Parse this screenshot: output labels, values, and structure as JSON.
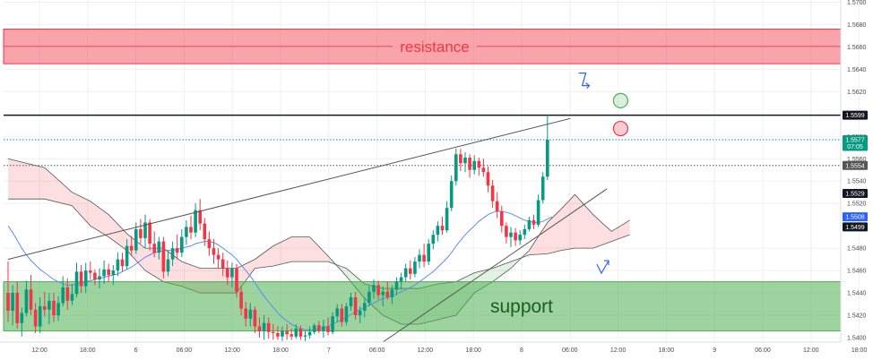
{
  "chart_data": {
    "type": "candlestick",
    "y_ticks": [
      "1.5700",
      "1.5680",
      "1.5660",
      "1.5640",
      "1.5620",
      "1.5580",
      "1.5560",
      "1.5540",
      "1.5520",
      "1.5480",
      "1.5460",
      "1.5440",
      "1.5420",
      "1.5400"
    ],
    "ylim": [
      1.5396,
      1.5702
    ],
    "x_ticks": [
      "12:00",
      "18:00",
      "6",
      "06:00",
      "12:00",
      "18:00",
      "7",
      "06:00",
      "12:00",
      "18:00",
      "8",
      "06:00",
      "12:00",
      "18:00",
      "9",
      "06:00",
      "12:00",
      "18:00"
    ],
    "grid": true,
    "price_tags": [
      {
        "label": "1.5599",
        "value": 1.5599,
        "color": "#131722"
      },
      {
        "label": "1.5577",
        "value": 1.5577,
        "color": "#089981"
      },
      {
        "label": "07:05",
        "value": 1.5571,
        "color": "#089981"
      },
      {
        "label": "1.5554",
        "value": 1.5554,
        "color": "#555555"
      },
      {
        "label": "1.5529",
        "value": 1.5529,
        "color": "#131722"
      },
      {
        "label": "1.5508",
        "value": 1.5508,
        "color": "#2962ff"
      },
      {
        "label": "1.5499",
        "value": 1.5499,
        "color": "#131722"
      }
    ],
    "zones": [
      {
        "label": "resistance",
        "from": 1.5645,
        "to": 1.5676,
        "color": "#f23645"
      },
      {
        "label": "support",
        "from": 1.5406,
        "to": 1.545,
        "color": "#4caf50"
      }
    ],
    "horizontal_lines": [
      {
        "value": 1.5599,
        "style": "solid",
        "color": "#131722"
      },
      {
        "value": 1.5554,
        "style": "dotted",
        "color": "#555555"
      },
      {
        "value": 1.5577,
        "style": "dotted",
        "color": "#089981"
      }
    ],
    "trendlines": [
      {
        "from": [
          0,
          1.547
        ],
        "to": [
          123,
          1.5596
        ]
      },
      {
        "from": [
          82,
          1.5396
        ],
        "to": [
          131,
          1.5533
        ]
      }
    ],
    "candles": [
      [
        1.544,
        1.5468,
        1.5414,
        1.5424
      ],
      [
        1.5424,
        1.5447,
        1.5411,
        1.544
      ],
      [
        1.544,
        1.545,
        1.5408,
        1.5413
      ],
      [
        1.5413,
        1.5427,
        1.5401,
        1.5422
      ],
      [
        1.5422,
        1.5451,
        1.5419,
        1.5443
      ],
      [
        1.5443,
        1.5456,
        1.542,
        1.5425
      ],
      [
        1.5425,
        1.5431,
        1.5404,
        1.541
      ],
      [
        1.541,
        1.5436,
        1.5404,
        1.5428
      ],
      [
        1.5428,
        1.5441,
        1.5419,
        1.5425
      ],
      [
        1.5425,
        1.544,
        1.5412,
        1.5433
      ],
      [
        1.5433,
        1.544,
        1.5414,
        1.542
      ],
      [
        1.542,
        1.5437,
        1.5415,
        1.5431
      ],
      [
        1.5431,
        1.5455,
        1.5428,
        1.5445
      ],
      [
        1.5445,
        1.5453,
        1.5425,
        1.5433
      ],
      [
        1.5433,
        1.5448,
        1.5429,
        1.5439
      ],
      [
        1.5439,
        1.5467,
        1.5436,
        1.5459
      ],
      [
        1.5459,
        1.5465,
        1.544,
        1.5446
      ],
      [
        1.5446,
        1.5467,
        1.544,
        1.546
      ],
      [
        1.546,
        1.5468,
        1.5452,
        1.5458
      ],
      [
        1.5458,
        1.5461,
        1.5447,
        1.5452
      ],
      [
        1.5452,
        1.5462,
        1.5444,
        1.5455
      ],
      [
        1.5455,
        1.5469,
        1.5448,
        1.5461
      ],
      [
        1.5461,
        1.5466,
        1.545,
        1.5456
      ],
      [
        1.5456,
        1.5465,
        1.5447,
        1.546
      ],
      [
        1.546,
        1.5476,
        1.5455,
        1.547
      ],
      [
        1.547,
        1.5476,
        1.5459,
        1.5464
      ],
      [
        1.5464,
        1.5488,
        1.5461,
        1.5482
      ],
      [
        1.5482,
        1.5491,
        1.5473,
        1.5478
      ],
      [
        1.5478,
        1.5503,
        1.5475,
        1.5497
      ],
      [
        1.5497,
        1.5506,
        1.5484,
        1.5489
      ],
      [
        1.5489,
        1.551,
        1.548,
        1.5503
      ],
      [
        1.5503,
        1.5506,
        1.5478,
        1.5484
      ],
      [
        1.5484,
        1.5495,
        1.5472,
        1.5476
      ],
      [
        1.5476,
        1.549,
        1.547,
        1.5486
      ],
      [
        1.5486,
        1.549,
        1.5453,
        1.5459
      ],
      [
        1.5459,
        1.5478,
        1.5455,
        1.547
      ],
      [
        1.547,
        1.5486,
        1.5464,
        1.548
      ],
      [
        1.548,
        1.5492,
        1.547,
        1.5476
      ],
      [
        1.5476,
        1.5497,
        1.5472,
        1.549
      ],
      [
        1.549,
        1.5505,
        1.5483,
        1.5499
      ],
      [
        1.5499,
        1.5509,
        1.5488,
        1.5494
      ],
      [
        1.5494,
        1.552,
        1.549,
        1.5514
      ],
      [
        1.5514,
        1.5524,
        1.5496,
        1.5502
      ],
      [
        1.5502,
        1.5507,
        1.5482,
        1.5488
      ],
      [
        1.5488,
        1.5495,
        1.5473,
        1.548
      ],
      [
        1.548,
        1.5488,
        1.5466,
        1.5474
      ],
      [
        1.5474,
        1.548,
        1.5462,
        1.547
      ],
      [
        1.547,
        1.5476,
        1.5455,
        1.5462
      ],
      [
        1.5462,
        1.5469,
        1.5447,
        1.5454
      ],
      [
        1.5454,
        1.5467,
        1.5445,
        1.5462
      ],
      [
        1.5462,
        1.5466,
        1.5436,
        1.5441
      ],
      [
        1.5441,
        1.5446,
        1.542,
        1.5426
      ],
      [
        1.5426,
        1.5432,
        1.541,
        1.5417
      ],
      [
        1.5417,
        1.5431,
        1.541,
        1.5425
      ],
      [
        1.5425,
        1.5428,
        1.5404,
        1.541
      ],
      [
        1.541,
        1.5418,
        1.54,
        1.5406
      ],
      [
        1.5406,
        1.542,
        1.5398,
        1.5413
      ],
      [
        1.5413,
        1.5418,
        1.5399,
        1.5405
      ],
      [
        1.5405,
        1.5412,
        1.5398,
        1.5404
      ],
      [
        1.5404,
        1.541,
        1.5398,
        1.5401
      ],
      [
        1.5401,
        1.541,
        1.5397,
        1.5406
      ],
      [
        1.5406,
        1.5412,
        1.5398,
        1.5403
      ],
      [
        1.5403,
        1.5408,
        1.5398,
        1.5401
      ],
      [
        1.5401,
        1.5412,
        1.5399,
        1.5408
      ],
      [
        1.5408,
        1.5411,
        1.5398,
        1.5401
      ],
      [
        1.5401,
        1.5406,
        1.5397,
        1.5402
      ],
      [
        1.5402,
        1.541,
        1.5399,
        1.5405
      ],
      [
        1.5405,
        1.5413,
        1.5403,
        1.5411
      ],
      [
        1.5411,
        1.5415,
        1.5404,
        1.5406
      ],
      [
        1.5406,
        1.5416,
        1.54,
        1.541
      ],
      [
        1.541,
        1.5418,
        1.5402,
        1.5405
      ],
      [
        1.5405,
        1.5423,
        1.5403,
        1.5419
      ],
      [
        1.5419,
        1.543,
        1.5414,
        1.5426
      ],
      [
        1.5426,
        1.543,
        1.541,
        1.5414
      ],
      [
        1.5414,
        1.5431,
        1.5411,
        1.5428
      ],
      [
        1.5428,
        1.544,
        1.5424,
        1.5436
      ],
      [
        1.5436,
        1.5441,
        1.5416,
        1.542
      ],
      [
        1.542,
        1.5428,
        1.5413,
        1.5424
      ],
      [
        1.5424,
        1.5436,
        1.5418,
        1.5431
      ],
      [
        1.5431,
        1.5446,
        1.5428,
        1.5441
      ],
      [
        1.5441,
        1.5452,
        1.5435,
        1.5447
      ],
      [
        1.5447,
        1.5451,
        1.5434,
        1.5438
      ],
      [
        1.5438,
        1.5446,
        1.5428,
        1.5441
      ],
      [
        1.5441,
        1.545,
        1.5434,
        1.5436
      ],
      [
        1.5436,
        1.5447,
        1.543,
        1.5443
      ],
      [
        1.5443,
        1.5454,
        1.5438,
        1.545
      ],
      [
        1.545,
        1.5458,
        1.5443,
        1.5454
      ],
      [
        1.5454,
        1.5466,
        1.545,
        1.5462
      ],
      [
        1.5462,
        1.5469,
        1.5452,
        1.5457
      ],
      [
        1.5457,
        1.5472,
        1.5454,
        1.5468
      ],
      [
        1.5468,
        1.5479,
        1.5462,
        1.5474
      ],
      [
        1.5474,
        1.5484,
        1.5463,
        1.5468
      ],
      [
        1.5468,
        1.5488,
        1.5465,
        1.5484
      ],
      [
        1.5484,
        1.5496,
        1.5479,
        1.5492
      ],
      [
        1.5492,
        1.5504,
        1.5486,
        1.55
      ],
      [
        1.55,
        1.5508,
        1.5492,
        1.5496
      ],
      [
        1.5496,
        1.5522,
        1.5494,
        1.5516
      ],
      [
        1.5516,
        1.5545,
        1.5513,
        1.554
      ],
      [
        1.554,
        1.5569,
        1.5536,
        1.5564
      ],
      [
        1.5564,
        1.5569,
        1.5549,
        1.5556
      ],
      [
        1.5556,
        1.5566,
        1.5548,
        1.5561
      ],
      [
        1.5561,
        1.5564,
        1.5543,
        1.555
      ],
      [
        1.555,
        1.5563,
        1.5546,
        1.5558
      ],
      [
        1.5558,
        1.5561,
        1.5545,
        1.5552
      ],
      [
        1.5552,
        1.556,
        1.5544,
        1.5548
      ],
      [
        1.5548,
        1.5553,
        1.553,
        1.5536
      ],
      [
        1.5536,
        1.5541,
        1.5516,
        1.5522
      ],
      [
        1.5522,
        1.553,
        1.5507,
        1.5513
      ],
      [
        1.5513,
        1.5518,
        1.5494,
        1.55
      ],
      [
        1.55,
        1.5503,
        1.5484,
        1.549
      ],
      [
        1.549,
        1.5499,
        1.5481,
        1.5494
      ],
      [
        1.5494,
        1.5498,
        1.5482,
        1.5487
      ],
      [
        1.5487,
        1.5496,
        1.5483,
        1.5492
      ],
      [
        1.5492,
        1.5501,
        1.5488,
        1.5497
      ],
      [
        1.5497,
        1.5508,
        1.5495,
        1.5505
      ],
      [
        1.5505,
        1.551,
        1.5497,
        1.5501
      ],
      [
        1.5501,
        1.5528,
        1.5499,
        1.5523
      ],
      [
        1.5523,
        1.5548,
        1.552,
        1.5544
      ],
      [
        1.5544,
        1.5599,
        1.5541,
        1.5577
      ]
    ],
    "moving_average": [
      1.55,
      1.5494,
      1.5487,
      1.548,
      1.5474,
      1.5469,
      1.5465,
      1.5461,
      1.5458,
      1.5455,
      1.5452,
      1.545,
      1.5448,
      1.5447,
      1.5447,
      1.5448,
      1.5449,
      1.545,
      1.5451,
      1.5452,
      1.5453,
      1.5454,
      1.5455,
      1.5456,
      1.5457,
      1.5459,
      1.5461,
      1.5463,
      1.5466,
      1.5469,
      1.5472,
      1.5474,
      1.5476,
      1.5477,
      1.5478,
      1.5478,
      1.5478,
      1.5479,
      1.548,
      1.5481,
      1.5482,
      1.5484,
      1.5485,
      1.5486,
      1.5486,
      1.5485,
      1.5483,
      1.548,
      1.5477,
      1.5474,
      1.547,
      1.5465,
      1.546,
      1.5455,
      1.5449,
      1.5443,
      1.5437,
      1.5432,
      1.5427,
      1.5422,
      1.5418,
      1.5415,
      1.5412,
      1.541,
      1.5408,
      1.5407,
      1.5407,
      1.5407,
      1.5408,
      1.5409,
      1.541,
      1.5412,
      1.5414,
      1.5416,
      1.5418,
      1.5421,
      1.5423,
      1.5425,
      1.5427,
      1.5429,
      1.5431,
      1.5433,
      1.5435,
      1.5436,
      1.5437,
      1.5439,
      1.5441,
      1.5443,
      1.5445,
      1.5447,
      1.545,
      1.5453,
      1.5456,
      1.5459,
      1.5463,
      1.5467,
      1.5471,
      1.5476,
      1.5482,
      1.5487,
      1.5492,
      1.5496,
      1.55,
      1.5504,
      1.5507,
      1.551,
      1.5512,
      1.5513,
      1.5513,
      1.5512,
      1.5511,
      1.5509,
      1.5507,
      1.5505,
      1.5504,
      1.5503,
      1.5503,
      1.5504,
      1.5506,
      1.5508
    ],
    "cloud": {
      "span_a": [
        [
          0,
          1.556
        ],
        [
          8,
          1.5552
        ],
        [
          14,
          1.553
        ],
        [
          18,
          1.5522
        ],
        [
          22,
          1.551
        ],
        [
          26,
          1.5493
        ],
        [
          30,
          1.548
        ],
        [
          34,
          1.548
        ],
        [
          38,
          1.5468
        ],
        [
          42,
          1.5462
        ],
        [
          46,
          1.5462
        ],
        [
          50,
          1.5462
        ],
        [
          54,
          1.547
        ],
        [
          58,
          1.5482
        ],
        [
          62,
          1.549
        ],
        [
          66,
          1.549
        ],
        [
          70,
          1.5473
        ],
        [
          74,
          1.5455
        ],
        [
          78,
          1.5435
        ],
        [
          82,
          1.542
        ],
        [
          86,
          1.5412
        ],
        [
          90,
          1.5412
        ],
        [
          94,
          1.5416
        ],
        [
          98,
          1.542
        ],
        [
          102,
          1.544
        ],
        [
          106,
          1.545
        ],
        [
          110,
          1.5462
        ],
        [
          114,
          1.5478
        ],
        [
          118,
          1.5503
        ],
        [
          121,
          1.5515
        ],
        [
          124,
          1.5528
        ],
        [
          128,
          1.551
        ],
        [
          132,
          1.5495
        ],
        [
          136,
          1.5505
        ]
      ],
      "span_b": [
        [
          0,
          1.5524
        ],
        [
          8,
          1.5524
        ],
        [
          14,
          1.5518
        ],
        [
          18,
          1.55
        ],
        [
          22,
          1.549
        ],
        [
          26,
          1.5478
        ],
        [
          30,
          1.546
        ],
        [
          34,
          1.545
        ],
        [
          38,
          1.5446
        ],
        [
          42,
          1.544
        ],
        [
          46,
          1.544
        ],
        [
          50,
          1.544
        ],
        [
          54,
          1.5462
        ],
        [
          58,
          1.5464
        ],
        [
          62,
          1.5468
        ],
        [
          66,
          1.5468
        ],
        [
          70,
          1.5468
        ],
        [
          74,
          1.5462
        ],
        [
          78,
          1.5448
        ],
        [
          82,
          1.5444
        ],
        [
          86,
          1.5444
        ],
        [
          90,
          1.5444
        ],
        [
          94,
          1.5448
        ],
        [
          98,
          1.545
        ],
        [
          102,
          1.5458
        ],
        [
          106,
          1.5462
        ],
        [
          110,
          1.5468
        ],
        [
          114,
          1.5474
        ],
        [
          118,
          1.5475
        ],
        [
          121,
          1.5478
        ],
        [
          124,
          1.548
        ],
        [
          128,
          1.548
        ],
        [
          132,
          1.5486
        ],
        [
          136,
          1.5492
        ]
      ]
    },
    "annotations": [
      {
        "type": "arrow_down",
        "x": 126,
        "y": 1.5631,
        "color": "#2962ff"
      },
      {
        "type": "circle",
        "x": 134,
        "y": 1.5612,
        "color": "#4caf50",
        "fill": "rgba(76,175,80,0.2)"
      },
      {
        "type": "circle",
        "x": 134,
        "y": 1.5587,
        "color": "#f23645",
        "fill": "rgba(242,54,69,0.25)"
      },
      {
        "type": "arrow_up",
        "x": 130,
        "y": 1.5464,
        "color": "#2962ff"
      }
    ]
  }
}
